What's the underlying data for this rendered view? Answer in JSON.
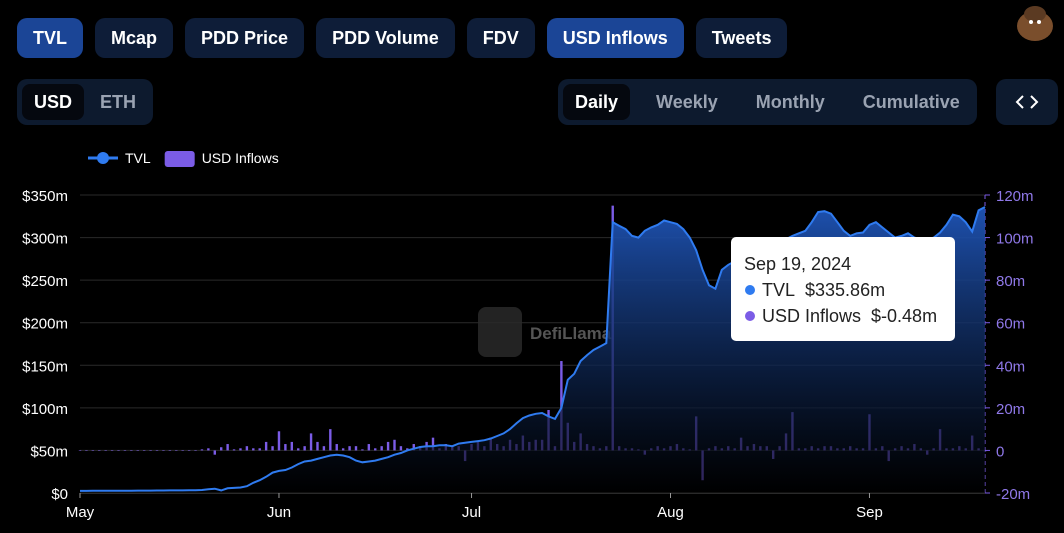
{
  "tabs": [
    {
      "label": "TVL",
      "active": true
    },
    {
      "label": "Mcap",
      "active": false
    },
    {
      "label": "PDD Price",
      "active": false
    },
    {
      "label": "PDD Volume",
      "active": false
    },
    {
      "label": "FDV",
      "active": false
    },
    {
      "label": "USD Inflows",
      "active": true
    },
    {
      "label": "Tweets",
      "active": false
    }
  ],
  "denominations": [
    {
      "label": "USD",
      "active": true
    },
    {
      "label": "ETH",
      "active": false
    }
  ],
  "periods": [
    {
      "label": "Daily",
      "active": true
    },
    {
      "label": "Weekly",
      "active": false
    },
    {
      "label": "Monthly",
      "active": false
    },
    {
      "label": "Cumulative",
      "active": false
    }
  ],
  "chart_data": {
    "type": "bar-line",
    "watermark": "DefiLlama",
    "categories": [
      "May",
      null,
      null,
      null,
      null,
      null,
      null,
      null,
      null,
      null,
      null,
      null,
      null,
      null,
      null,
      null,
      null,
      null,
      null,
      null,
      null,
      null,
      null,
      null,
      null,
      null,
      null,
      null,
      null,
      null,
      null,
      "Jun",
      null,
      null,
      null,
      null,
      null,
      null,
      null,
      null,
      null,
      null,
      null,
      null,
      null,
      null,
      null,
      null,
      null,
      null,
      null,
      null,
      null,
      null,
      null,
      null,
      null,
      null,
      null,
      null,
      null,
      "Jul",
      null,
      null,
      null,
      null,
      null,
      null,
      null,
      null,
      null,
      null,
      null,
      null,
      null,
      null,
      null,
      null,
      null,
      null,
      null,
      null,
      null,
      null,
      null,
      null,
      null,
      null,
      null,
      null,
      null,
      null,
      "Aug",
      null,
      null,
      null,
      null,
      null,
      null,
      null,
      null,
      null,
      null,
      null,
      null,
      null,
      null,
      null,
      null,
      null,
      null,
      null,
      null,
      null,
      null,
      null,
      null,
      null,
      null,
      null,
      null,
      null,
      null,
      "Sep",
      null,
      null,
      null,
      null,
      null,
      null,
      null,
      null,
      null,
      null,
      null,
      null,
      null,
      null,
      null,
      null,
      null,
      null
    ],
    "series": [
      {
        "name": "TVL",
        "type": "line",
        "color": "#2f7bf0",
        "values": [
          2.5,
          2.5,
          2.6,
          2.6,
          2.6,
          2.6,
          2.7,
          2.7,
          2.7,
          2.8,
          2.8,
          2.8,
          2.9,
          2.9,
          3,
          3,
          3.1,
          3.2,
          3.3,
          3.5,
          4.5,
          5,
          3,
          5.5,
          6,
          6.5,
          8,
          12,
          15,
          19,
          24,
          26,
          27,
          30,
          34,
          37,
          38,
          40,
          42,
          44,
          45,
          44,
          42,
          38,
          36,
          37,
          38,
          40,
          42,
          45,
          47,
          50,
          52,
          54,
          55,
          55,
          56,
          56,
          55,
          58,
          59,
          60,
          61,
          62,
          64,
          67,
          70,
          75,
          82,
          88,
          91,
          93,
          94,
          90,
          87,
          100,
          133,
          140,
          155,
          162,
          168,
          172,
          176,
          318,
          314,
          310,
          302,
          300,
          308,
          312,
          315,
          320,
          318,
          316,
          310,
          300,
          285,
          262,
          244,
          240,
          262,
          268,
          272,
          276,
          278,
          280,
          282,
          285,
          290,
          295,
          298,
          302,
          305,
          308,
          318,
          330,
          331,
          328,
          318,
          308,
          302,
          305,
          306,
          315,
          318,
          312,
          306,
          300,
          302,
          305,
          300,
          298,
          297,
          300,
          306,
          315,
          327,
          325,
          318,
          307,
          332,
          335.86
        ]
      },
      {
        "name": "USD Inflows",
        "type": "bar",
        "axis": "y2",
        "color": "#7b5ce6",
        "values": [
          0,
          0,
          0,
          0,
          0,
          0,
          0,
          0,
          0,
          0,
          0,
          0,
          0,
          0,
          0,
          0,
          0,
          0,
          0,
          0.5,
          1,
          -2,
          1.5,
          3,
          0.5,
          1,
          2,
          1,
          1,
          4,
          2,
          9,
          3,
          4,
          1,
          2,
          8,
          4,
          2,
          10,
          3,
          1,
          2,
          2,
          0.5,
          3,
          1,
          2,
          4,
          5,
          2,
          1,
          3,
          2,
          4,
          6,
          1,
          3,
          2,
          2,
          -5,
          3,
          4,
          2,
          6,
          3,
          2,
          5,
          3,
          7,
          4,
          5,
          5,
          19,
          2,
          42,
          13,
          4,
          8,
          3,
          2,
          1,
          2,
          115,
          2,
          1,
          1,
          0.5,
          -2,
          1,
          2,
          1,
          2,
          3,
          1,
          0.5,
          16,
          -14,
          1,
          2,
          1,
          2,
          1,
          6,
          2,
          3,
          2,
          2,
          -4,
          2,
          8,
          18,
          1,
          1,
          2,
          1,
          2,
          2,
          1,
          1,
          2,
          1,
          1,
          17,
          1,
          2,
          -5,
          1,
          2,
          1,
          3,
          1,
          -2,
          1,
          10,
          1,
          1,
          2,
          1,
          7,
          1,
          -0.48
        ]
      }
    ],
    "ylim": [
      0,
      350
    ],
    "yticks": [
      {
        "value": 0,
        "label": "$0"
      },
      {
        "value": 50,
        "label": "$50m"
      },
      {
        "value": 100,
        "label": "$100m"
      },
      {
        "value": 150,
        "label": "$150m"
      },
      {
        "value": 200,
        "label": "$200m"
      },
      {
        "value": 250,
        "label": "$250m"
      },
      {
        "value": 300,
        "label": "$300m"
      },
      {
        "value": 350,
        "label": "$350m"
      }
    ],
    "y2lim": [
      -20,
      120
    ],
    "y2ticks": [
      {
        "value": -20,
        "label": "-20m"
      },
      {
        "value": 0,
        "label": "0"
      },
      {
        "value": 20,
        "label": "20m"
      },
      {
        "value": 40,
        "label": "40m"
      },
      {
        "value": 60,
        "label": "60m"
      },
      {
        "value": 80,
        "label": "80m"
      },
      {
        "value": 100,
        "label": "100m"
      },
      {
        "value": 120,
        "label": "120m"
      }
    ],
    "grid": true,
    "tooltip": {
      "date": "Sep 19, 2024",
      "items": [
        {
          "name": "TVL",
          "value": "$335.86m"
        },
        {
          "name": "USD Inflows",
          "value": "$-0.48m"
        }
      ]
    }
  }
}
